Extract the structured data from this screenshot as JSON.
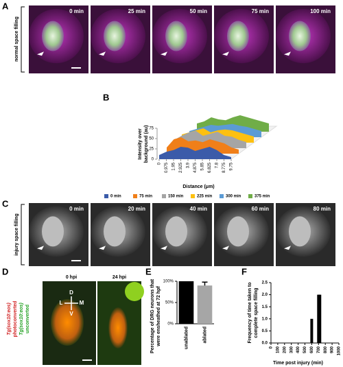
{
  "panel_labels": [
    "A",
    "B",
    "C",
    "D",
    "E",
    "F"
  ],
  "panel_a": {
    "label": "normal space filling",
    "times": [
      "0 min",
      "25 min",
      "50 min",
      "75 min",
      "100 min"
    ]
  },
  "panel_c": {
    "label": "injury space filling",
    "times": [
      "0 min",
      "20 min",
      "40 min",
      "60 min",
      "80 min"
    ]
  },
  "panel_d": {
    "times": [
      "0 hpi",
      "24 hpi"
    ],
    "legend": [
      "Tg(sox10:eos)",
      "photoconverted",
      "Tg(sox10:eos)",
      "unconverted"
    ],
    "compass": [
      "D",
      "V",
      "L",
      "M"
    ]
  },
  "chart_data": [
    {
      "type": "area3d",
      "ylabel": [
        "Intensity over",
        "background (au)"
      ],
      "xlabel": "Distance (μm)",
      "x": [
        0,
        0.975,
        1.95,
        2.925,
        3.9,
        4.875,
        5.85,
        6.825,
        7.8,
        8.775,
        9.75
      ],
      "xlim": [
        0,
        9.75
      ],
      "xticks": [
        0,
        0.975,
        1.95,
        2.925,
        3.9,
        4.875,
        5.85,
        6.825,
        7.8,
        8.775,
        9.75
      ],
      "ylim": [
        0,
        75
      ],
      "yticks": [
        0,
        25,
        50,
        75
      ],
      "series": [
        {
          "name": "0 min",
          "color": "#3b5ba9",
          "values": [
            10,
            18,
            22,
            30,
            28,
            20,
            25,
            30,
            22,
            10,
            5
          ]
        },
        {
          "name": "75 min",
          "color": "#f07f19",
          "values": [
            15,
            35,
            40,
            30,
            32,
            28,
            35,
            30,
            25,
            15,
            10
          ]
        },
        {
          "name": "150 min",
          "color": "#a5a5a5",
          "values": [
            20,
            30,
            38,
            42,
            30,
            35,
            40,
            30,
            28,
            20,
            15
          ]
        },
        {
          "name": "225 min",
          "color": "#fdc010",
          "values": [
            20,
            25,
            30,
            35,
            25,
            30,
            32,
            30,
            25,
            20,
            15
          ]
        },
        {
          "name": "300 min",
          "color": "#5b9bd5",
          "values": [
            15,
            20,
            25,
            30,
            28,
            30,
            32,
            28,
            25,
            20,
            15
          ]
        },
        {
          "name": "375 min",
          "color": "#70ad47",
          "values": [
            20,
            25,
            35,
            30,
            28,
            35,
            40,
            35,
            30,
            25,
            20
          ]
        }
      ]
    },
    {
      "type": "bar",
      "ylabel": [
        "Percentage of DRG neurons that",
        "were ensheathed at 72 hpf"
      ],
      "categories": [
        "unablated",
        "ablated"
      ],
      "values": [
        100,
        90
      ],
      "errors": [
        0,
        8
      ],
      "colors": [
        "#000000",
        "#a6a6a6"
      ],
      "ylim": [
        0,
        100
      ],
      "yticks": [
        {
          "value": 0,
          "label": "0%"
        },
        {
          "value": 50,
          "label": "50%"
        },
        {
          "value": 100,
          "label": "100%"
        }
      ]
    },
    {
      "type": "histbar",
      "ylabel": [
        "Frequency of time taken to",
        "complete space filling"
      ],
      "xlabel": "Time post injury (min)",
      "x": [
        600,
        700,
        720
      ],
      "values": [
        1,
        2,
        2
      ],
      "color": "#000000",
      "xlim": [
        0,
        1000
      ],
      "xticks": [
        0,
        100,
        200,
        300,
        400,
        500,
        600,
        700,
        800,
        900,
        1000
      ],
      "ylim": [
        0,
        2.5
      ],
      "yticks": [
        {
          "value": 0,
          "label": "0.0"
        },
        {
          "value": 0.5,
          "label": "0.5"
        },
        {
          "value": 1,
          "label": "1.0"
        },
        {
          "value": 1.5,
          "label": "1.5"
        },
        {
          "value": 2,
          "label": "2.0"
        },
        {
          "value": 2.5,
          "label": "2.5"
        }
      ]
    }
  ]
}
